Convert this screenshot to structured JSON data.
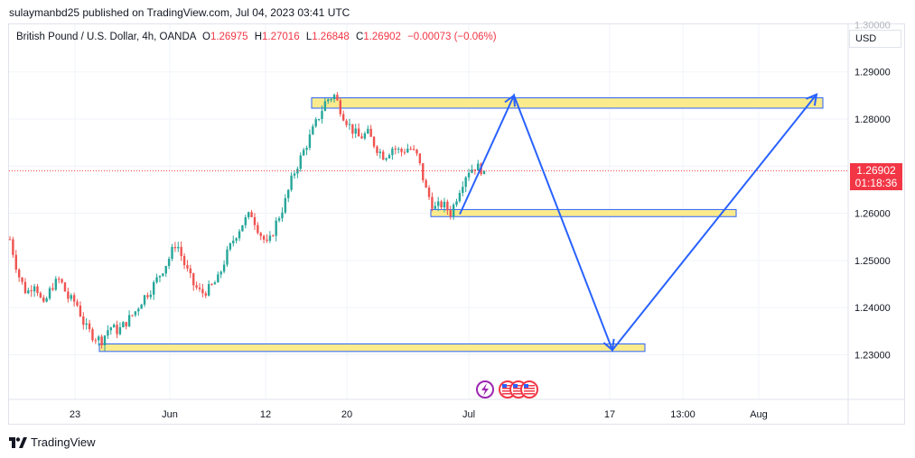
{
  "header": {
    "published_text": "sulaymanbd25 published on TradingView.com, Jul 04, 2023 03:41 UTC"
  },
  "legend": {
    "symbol": "British Pound / U.S. Dollar, 4h, OANDA",
    "o_label": "O",
    "o_value": "1.26975",
    "h_label": "H",
    "h_value": "1.27016",
    "l_label": "L",
    "l_value": "1.26848",
    "c_label": "C",
    "c_value": "1.26902",
    "change": "−0.00073 (−0.06%)"
  },
  "currency_button": "USD",
  "current_price": {
    "price": "1.26902",
    "countdown": "01:18:36"
  },
  "footer": {
    "brand": "TradingView"
  },
  "colors": {
    "up": "#26a69a",
    "down": "#ef5350",
    "zone_fill": "#fbeb8c",
    "zone_border": "#2962ff",
    "projection": "#2962ff",
    "price_line": "#f23645"
  },
  "chart_data": {
    "type": "candlestick",
    "title": "British Pound / U.S. Dollar, 4h, OANDA",
    "y_ticks": [
      "1.23000",
      "1.24000",
      "1.25000",
      "1.26000",
      "1.27000",
      "1.28000",
      "1.29000"
    ],
    "top_tick_partial": "1.30000",
    "x_ticks": [
      "23",
      "Jun",
      "12",
      "20",
      "Jul",
      "17",
      "13:00",
      "Aug"
    ],
    "ylim": [
      1.2215,
      1.3055
    ],
    "current_price": 1.26902,
    "price_path": [
      1.2545,
      1.247,
      1.243,
      1.2455,
      1.24,
      1.2445,
      1.246,
      1.242,
      1.241,
      1.236,
      1.234,
      1.233,
      1.236,
      1.235,
      1.237,
      1.239,
      1.242,
      1.244,
      1.247,
      1.25,
      1.254,
      1.249,
      1.245,
      1.243,
      1.244,
      1.246,
      1.251,
      1.255,
      1.258,
      1.26,
      1.256,
      1.253,
      1.258,
      1.262,
      1.268,
      1.272,
      1.276,
      1.28,
      1.284,
      1.285,
      1.281,
      1.278,
      1.276,
      1.277,
      1.274,
      1.272,
      1.274,
      1.273,
      1.274,
      1.272,
      1.265,
      1.261,
      1.262,
      1.26,
      1.265,
      1.269,
      1.27,
      1.269
    ],
    "zones": [
      {
        "name": "upper-resistance",
        "low": 1.2823,
        "high": 1.2845
      },
      {
        "name": "mid-support",
        "low": 1.2593,
        "high": 1.2608
      },
      {
        "name": "lower-support",
        "low": 1.2307,
        "high": 1.2323
      }
    ],
    "projection_path": [
      {
        "date": "2023-07-01",
        "price": 1.2598
      },
      {
        "date": "2023-07-04",
        "price": 1.285
      },
      {
        "date": "2023-07-17",
        "price": 1.231
      },
      {
        "date": "2023-08-04",
        "price": 1.2852
      }
    ],
    "events": [
      "dividend-icon",
      "us-flag-icon",
      "us-flag-icon",
      "us-flag-icon"
    ]
  }
}
